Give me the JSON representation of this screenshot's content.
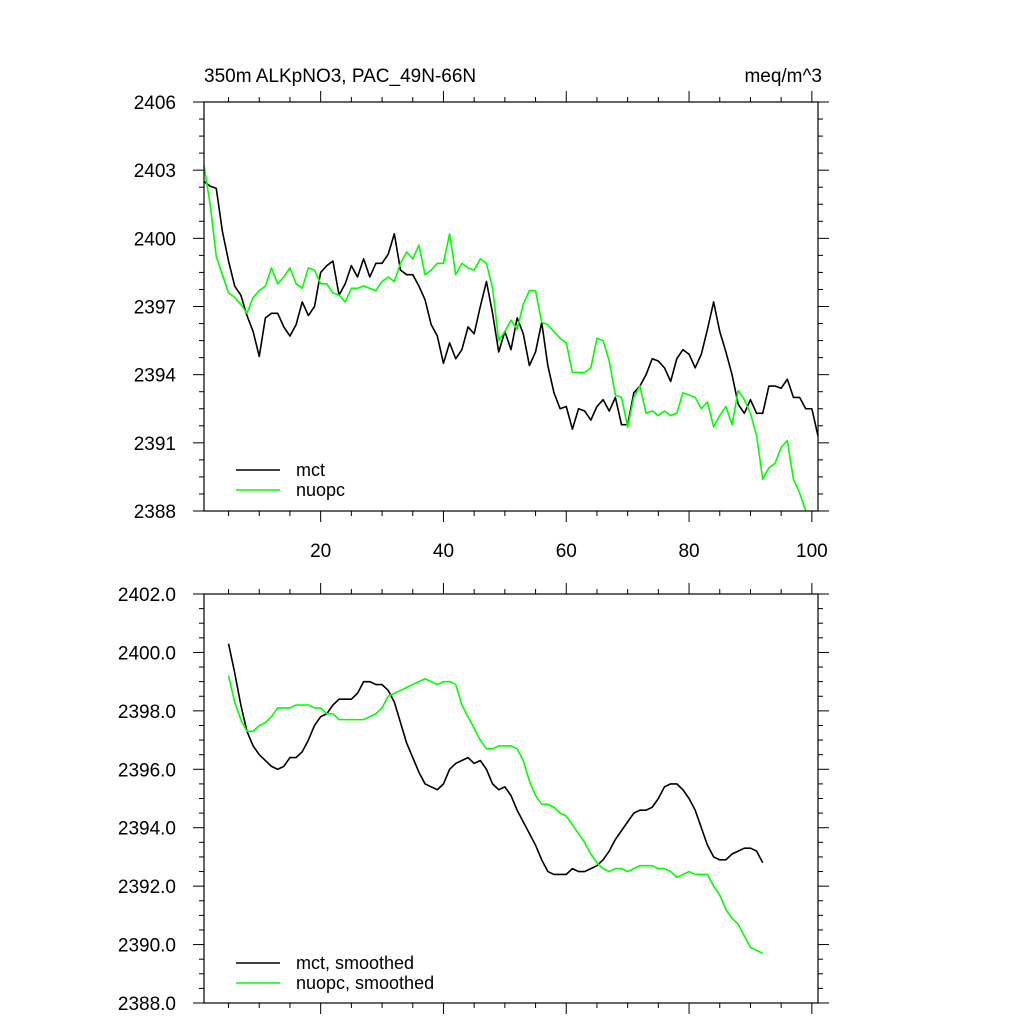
{
  "chart_data": [
    {
      "type": "line",
      "title": "350m ALKpNO3, PAC_49N-66N",
      "units": "meq/m^3",
      "xlabel": "",
      "ylabel": "",
      "xlim": [
        1,
        101
      ],
      "ylim": [
        2388,
        2406
      ],
      "xticks": [
        20,
        40,
        60,
        80,
        100
      ],
      "xtick_labels": [
        "20",
        "40",
        "60",
        "80",
        "100"
      ],
      "xticks_labeled": true,
      "yticks": [
        2388,
        2391,
        2394,
        2397,
        2400,
        2403,
        2406
      ],
      "ytick_labels": [
        "2388",
        "2391",
        "2394",
        "2397",
        "2400",
        "2403",
        "2406"
      ],
      "legend_position": "bottom-left",
      "x_start": 1,
      "series": [
        {
          "name": "mct",
          "color": "#000000",
          "values": [
            2402.5,
            2402.3,
            2402.2,
            2400.3,
            2399.0,
            2397.9,
            2397.5,
            2396.6,
            2395.9,
            2394.8,
            2396.5,
            2396.7,
            2396.7,
            2396.1,
            2395.7,
            2396.2,
            2397.2,
            2396.6,
            2397.0,
            2398.5,
            2398.8,
            2399.0,
            2397.5,
            2398.0,
            2398.8,
            2398.3,
            2399.1,
            2398.3,
            2398.9,
            2398.9,
            2399.3,
            2400.2,
            2398.6,
            2398.4,
            2398.4,
            2397.9,
            2397.3,
            2396.2,
            2395.7,
            2394.5,
            2395.4,
            2394.7,
            2395.1,
            2396.1,
            2395.8,
            2397.0,
            2398.1,
            2396.7,
            2395.0,
            2395.9,
            2395.1,
            2396.5,
            2395.8,
            2394.4,
            2395.0,
            2396.3,
            2394.4,
            2393.2,
            2392.5,
            2392.6,
            2391.6,
            2392.5,
            2392.4,
            2392.0,
            2392.6,
            2392.9,
            2392.4,
            2393.0,
            2391.8,
            2391.8,
            2393.2,
            2393.5,
            2394.0,
            2394.7,
            2394.6,
            2394.3,
            2393.7,
            2394.7,
            2395.1,
            2394.9,
            2394.3,
            2394.9,
            2396.0,
            2397.2,
            2395.9,
            2395.0,
            2394.0,
            2392.7,
            2392.3,
            2392.9,
            2392.3,
            2392.3,
            2393.5,
            2393.5,
            2393.4,
            2393.8,
            2393.0,
            2393.0,
            2392.5,
            2392.5,
            2391.3
          ]
        },
        {
          "name": "nuopc",
          "color": "#00ff00",
          "values": [
            2403.2,
            2401.5,
            2399.2,
            2398.4,
            2397.6,
            2397.4,
            2397.1,
            2396.7,
            2397.4,
            2397.7,
            2397.9,
            2398.7,
            2398.0,
            2398.3,
            2398.7,
            2398.0,
            2397.8,
            2398.7,
            2398.6,
            2398.0,
            2398.0,
            2397.6,
            2397.5,
            2397.2,
            2397.8,
            2397.8,
            2397.9,
            2397.8,
            2397.7,
            2398.1,
            2398.3,
            2398.1,
            2398.9,
            2399.4,
            2399.1,
            2399.7,
            2398.4,
            2398.6,
            2398.9,
            2398.9,
            2400.2,
            2398.4,
            2398.9,
            2398.7,
            2398.6,
            2399.1,
            2398.9,
            2397.8,
            2395.5,
            2395.9,
            2396.4,
            2396.0,
            2397.1,
            2397.7,
            2397.7,
            2396.3,
            2396.2,
            2395.9,
            2395.6,
            2395.4,
            2394.1,
            2394.1,
            2394.1,
            2394.3,
            2395.6,
            2395.5,
            2394.6,
            2393.1,
            2393.0,
            2391.7,
            2393.0,
            2393.5,
            2392.3,
            2392.4,
            2392.2,
            2392.4,
            2392.2,
            2392.3,
            2393.2,
            2393.1,
            2393.0,
            2392.5,
            2392.8,
            2391.7,
            2392.2,
            2392.6,
            2391.8,
            2393.3,
            2392.9,
            2392.3,
            2391.3,
            2389.4,
            2389.9,
            2390.1,
            2390.8,
            2391.1,
            2389.4,
            2388.8,
            2388.0
          ]
        }
      ]
    },
    {
      "type": "line",
      "title": "",
      "xlabel": "",
      "ylabel": "",
      "xlim": [
        1,
        101
      ],
      "ylim": [
        2388.0,
        2402.0
      ],
      "xticks": [
        20,
        40,
        60,
        80,
        100
      ],
      "xtick_labels": [
        "20",
        "40",
        "60",
        "80",
        "100"
      ],
      "xticks_labeled": false,
      "yticks": [
        2388.0,
        2390.0,
        2392.0,
        2394.0,
        2396.0,
        2398.0,
        2400.0,
        2402.0
      ],
      "ytick_labels": [
        "2388.0",
        "2390.0",
        "2392.0",
        "2394.0",
        "2396.0",
        "2398.0",
        "2400.0",
        "2402.0"
      ],
      "legend_position": "bottom-left",
      "x_start": 5,
      "series": [
        {
          "name": "mct, smoothed",
          "color": "#000000",
          "values": [
            2400.3,
            2399.3,
            2398.2,
            2397.3,
            2396.8,
            2396.5,
            2396.3,
            2396.1,
            2396.0,
            2396.1,
            2396.4,
            2396.4,
            2396.6,
            2397.0,
            2397.5,
            2397.8,
            2397.9,
            2398.2,
            2398.4,
            2398.4,
            2398.4,
            2398.6,
            2399.0,
            2399.0,
            2398.9,
            2398.9,
            2398.7,
            2398.3,
            2397.6,
            2396.9,
            2396.4,
            2395.9,
            2395.5,
            2395.4,
            2395.3,
            2395.5,
            2396.0,
            2396.2,
            2396.3,
            2396.4,
            2396.2,
            2396.3,
            2396.0,
            2395.5,
            2395.3,
            2395.4,
            2395.1,
            2394.6,
            2394.2,
            2393.8,
            2393.4,
            2392.9,
            2392.5,
            2392.4,
            2392.4,
            2392.4,
            2392.6,
            2392.5,
            2392.5,
            2392.6,
            2392.7,
            2392.9,
            2393.2,
            2393.6,
            2393.9,
            2394.2,
            2394.5,
            2394.6,
            2394.6,
            2394.7,
            2395.0,
            2395.4,
            2395.5,
            2395.5,
            2395.3,
            2395.0,
            2394.6,
            2394.0,
            2393.4,
            2393.0,
            2392.9,
            2392.9,
            2393.1,
            2393.2,
            2393.3,
            2393.3,
            2393.2,
            2392.8
          ]
        },
        {
          "name": "nuopc, smoothed",
          "color": "#00ff00",
          "values": [
            2399.2,
            2398.3,
            2397.7,
            2397.3,
            2397.3,
            2397.5,
            2397.6,
            2397.8,
            2398.1,
            2398.1,
            2398.1,
            2398.2,
            2398.2,
            2398.2,
            2398.1,
            2398.1,
            2397.9,
            2397.9,
            2397.7,
            2397.7,
            2397.7,
            2397.7,
            2397.7,
            2397.8,
            2397.9,
            2398.1,
            2398.5,
            2398.6,
            2398.7,
            2398.8,
            2398.9,
            2399.0,
            2399.1,
            2399.0,
            2398.9,
            2399.0,
            2399.0,
            2398.9,
            2398.2,
            2397.8,
            2397.4,
            2397.0,
            2396.7,
            2396.7,
            2396.8,
            2396.8,
            2396.8,
            2396.7,
            2396.3,
            2395.6,
            2395.1,
            2394.8,
            2394.8,
            2394.7,
            2394.5,
            2394.4,
            2394.1,
            2393.8,
            2393.5,
            2393.1,
            2392.8,
            2392.6,
            2392.5,
            2392.6,
            2392.6,
            2392.5,
            2392.6,
            2392.7,
            2392.7,
            2392.7,
            2392.6,
            2392.6,
            2392.5,
            2392.3,
            2392.4,
            2392.5,
            2392.4,
            2392.4,
            2392.4,
            2392.0,
            2391.7,
            2391.2,
            2390.9,
            2390.7,
            2390.3,
            2389.9,
            2389.8,
            2389.7
          ]
        }
      ]
    }
  ]
}
